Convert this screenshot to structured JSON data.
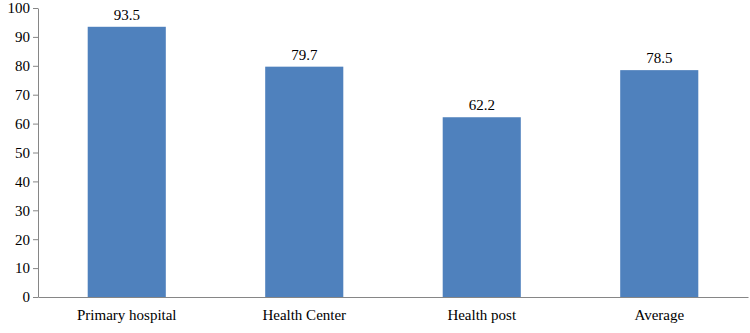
{
  "chart_data": {
    "type": "bar",
    "categories": [
      "Primary hospital",
      "Health Center",
      "Health post",
      "Average"
    ],
    "values": [
      93.5,
      79.7,
      62.2,
      78.5
    ],
    "color": "#4f81bd",
    "ylim": [
      0,
      100
    ],
    "yticks": [
      0,
      10,
      20,
      30,
      40,
      50,
      60,
      70,
      80,
      90,
      100
    ],
    "grid": false,
    "data_labels": true
  }
}
